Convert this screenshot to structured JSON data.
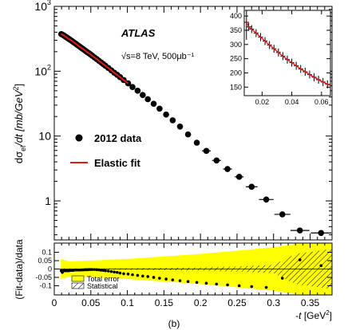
{
  "chart_data": [
    {
      "type": "scatter",
      "panel": "main",
      "ylabel_prefix": "dσ",
      "ylabel_sub": "el",
      "ylabel_mid": "/dt [mb/GeV",
      "ylabel_sup": "2",
      "ylabel_end": "]",
      "yscale": "log",
      "ylim": [
        0.25,
        1000
      ],
      "xlim": [
        0,
        0.38
      ],
      "y_ticks": [
        {
          "v": 1,
          "base": "1"
        },
        {
          "v": 10,
          "base": "10"
        },
        {
          "v": 100,
          "base": "10",
          "exp": "2"
        },
        {
          "v": 1000,
          "base": "10",
          "exp": "3"
        }
      ],
      "atlas_label": "ATLAS",
      "energy_label": "√s=8 TeV, 500μb⁻¹",
      "legend": [
        {
          "label": "2012 data",
          "marker": "dot",
          "color": "#000000"
        },
        {
          "label": "Elastic fit",
          "marker": "line",
          "color": "#e31a1c"
        }
      ],
      "series": [
        {
          "name": "2012 data",
          "x": [
            0.0095,
            0.011,
            0.0125,
            0.014,
            0.0155,
            0.017,
            0.0185,
            0.02,
            0.022,
            0.024,
            0.026,
            0.028,
            0.03,
            0.032,
            0.034,
            0.036,
            0.038,
            0.04,
            0.042,
            0.044,
            0.046,
            0.048,
            0.05,
            0.052,
            0.055,
            0.058,
            0.061,
            0.064,
            0.067,
            0.07,
            0.074,
            0.078,
            0.082,
            0.086,
            0.09,
            0.095,
            0.101,
            0.107,
            0.114,
            0.121,
            0.128,
            0.136,
            0.144,
            0.153,
            0.162,
            0.172,
            0.183,
            0.195,
            0.208,
            0.222,
            0.237,
            0.253,
            0.27,
            0.29,
            0.312,
            0.336,
            0.365
          ],
          "y": [
            374,
            367,
            359,
            350,
            341,
            332,
            323,
            315,
            304,
            293,
            282,
            272,
            262,
            252,
            243,
            234,
            225,
            217,
            209,
            201,
            194,
            187,
            180,
            173,
            163,
            154,
            145,
            137,
            129,
            121,
            112,
            103,
            95,
            88,
            81,
            73,
            65,
            57,
            50,
            43,
            37,
            31.5,
            26.5,
            21.5,
            17.5,
            14,
            10.6,
            7.9,
            5.9,
            4.2,
            3.1,
            2.35,
            1.65,
            1.05,
            0.62,
            0.35,
            0.32
          ],
          "xerr": [
            0,
            0,
            0,
            0,
            0,
            0,
            0,
            0,
            0,
            0,
            0,
            0,
            0,
            0,
            0,
            0,
            0,
            0,
            0,
            0,
            0,
            0,
            0,
            0,
            0,
            0,
            0,
            0,
            0,
            0,
            0,
            0,
            0,
            0,
            0,
            0,
            0,
            0,
            0,
            0,
            0,
            0,
            0,
            0,
            0,
            0,
            0,
            0,
            0.006,
            0.006,
            0.006,
            0.006,
            0.008,
            0.01,
            0.011,
            0.013,
            0.014
          ]
        },
        {
          "name": "Elastic fit",
          "x_range": [
            0.0095,
            0.102
          ],
          "color": "#e31a1c"
        }
      ]
    },
    {
      "type": "scatter",
      "panel": "inset",
      "xlim": [
        0.008,
        0.066
      ],
      "ylim": [
        120,
        420
      ],
      "x_ticks": [
        0.02,
        0.04,
        0.06
      ],
      "y_ticks": [
        150,
        200,
        250,
        300,
        350,
        400
      ],
      "x_tick_labels": [
        "0.02",
        "0.04",
        "0.06"
      ],
      "y_tick_labels": [
        "150",
        "200",
        "250",
        "300",
        "350",
        "400"
      ],
      "series": [
        {
          "name": "2012 data",
          "x": [
            0.0095,
            0.011,
            0.013,
            0.016,
            0.019,
            0.022,
            0.025,
            0.028,
            0.031,
            0.034,
            0.037,
            0.04,
            0.043,
            0.046,
            0.049,
            0.052,
            0.055,
            0.058,
            0.061,
            0.064
          ],
          "y": [
            378,
            362,
            354,
            340,
            326,
            312,
            298,
            285,
            272,
            259,
            247,
            236,
            225,
            214,
            204,
            194,
            185,
            176,
            168,
            160
          ]
        },
        {
          "name": "Elastic fit",
          "x_range": [
            0.0095,
            0.066
          ],
          "color": "#e31a1c"
        }
      ]
    },
    {
      "type": "scatter",
      "panel": "ratio",
      "ylabel": "(Fit-data)/data",
      "xlabel_prefix": "-",
      "xlabel_var": "t",
      "xlabel_unit": " [GeV",
      "xlabel_sup": "2",
      "xlabel_end": "]",
      "xlim": [
        0,
        0.38
      ],
      "ylim": [
        -0.155,
        0.155
      ],
      "x_tick_labels": [
        "0",
        "0.05",
        "0.1",
        "0.15",
        "0.2",
        "0.25",
        "0.3",
        "0.35"
      ],
      "x_ticks": [
        0,
        0.05,
        0.1,
        0.15,
        0.2,
        0.25,
        0.3,
        0.35
      ],
      "y_ticks": [
        0.1,
        0.05,
        0,
        -0.05,
        -0.1
      ],
      "y_tick_labels": [
        "0.1",
        "0.05",
        "0",
        "-0.05",
        "-0.1"
      ],
      "legend": [
        {
          "label": "Total error",
          "swatch": "#ffff00"
        },
        {
          "label": "Statistical",
          "swatch": "hatched"
        }
      ],
      "total_error_band": {
        "x": [
          0.009,
          0.02,
          0.05,
          0.1,
          0.15,
          0.2,
          0.25,
          0.3,
          0.33,
          0.38
        ],
        "half_width": [
          0.06,
          0.045,
          0.05,
          0.06,
          0.075,
          0.09,
          0.11,
          0.13,
          0.15,
          0.155
        ]
      },
      "stat_band": {
        "x": [
          0.009,
          0.05,
          0.1,
          0.15,
          0.2,
          0.25,
          0.3,
          0.33,
          0.38
        ],
        "half_width": [
          0.004,
          0.003,
          0.005,
          0.007,
          0.01,
          0.015,
          0.025,
          0.09,
          0.12
        ]
      },
      "series": [
        {
          "name": "2012 data",
          "x": [
            0.0095,
            0.011,
            0.0125,
            0.014,
            0.0155,
            0.017,
            0.0185,
            0.02,
            0.022,
            0.024,
            0.026,
            0.028,
            0.03,
            0.032,
            0.034,
            0.036,
            0.038,
            0.04,
            0.042,
            0.044,
            0.046,
            0.048,
            0.05,
            0.052,
            0.055,
            0.058,
            0.061,
            0.064,
            0.067,
            0.07,
            0.074,
            0.078,
            0.082,
            0.086,
            0.09,
            0.095,
            0.101,
            0.107,
            0.114,
            0.121,
            0.128,
            0.136,
            0.144,
            0.153,
            0.162,
            0.172,
            0.183,
            0.195,
            0.208,
            0.222,
            0.237,
            0.253,
            0.27,
            0.29,
            0.312,
            0.336,
            0.365
          ],
          "y": [
            -0.01,
            -0.02,
            -0.01,
            -0.01,
            -0.01,
            -0.01,
            -0.01,
            -0.01,
            -0.008,
            -0.008,
            -0.008,
            -0.006,
            -0.006,
            -0.006,
            -0.006,
            -0.006,
            -0.005,
            -0.005,
            -0.004,
            -0.004,
            -0.004,
            -0.003,
            -0.003,
            -0.003,
            -0.003,
            -0.004,
            -0.005,
            -0.007,
            -0.008,
            -0.01,
            -0.012,
            -0.015,
            -0.018,
            -0.02,
            -0.024,
            -0.028,
            -0.03,
            -0.034,
            -0.038,
            -0.042,
            -0.045,
            -0.05,
            -0.055,
            -0.06,
            -0.065,
            -0.07,
            -0.075,
            -0.08,
            -0.085,
            -0.09,
            -0.095,
            -0.1,
            -0.105,
            -0.11,
            -0.055,
            0.055,
            0.02
          ]
        }
      ]
    }
  ],
  "caption": "(b)"
}
